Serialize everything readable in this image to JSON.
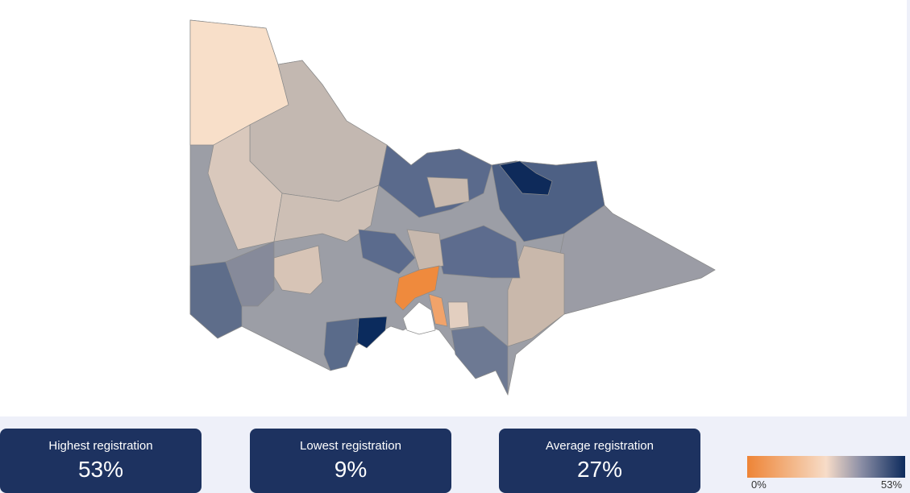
{
  "cards": [
    {
      "title": "Highest registration",
      "value": "53%"
    },
    {
      "title": "Lowest registration",
      "value": "9%"
    },
    {
      "title": "Average registration",
      "value": "27%"
    }
  ],
  "legend": {
    "min": "0%",
    "max": "53%"
  }
}
